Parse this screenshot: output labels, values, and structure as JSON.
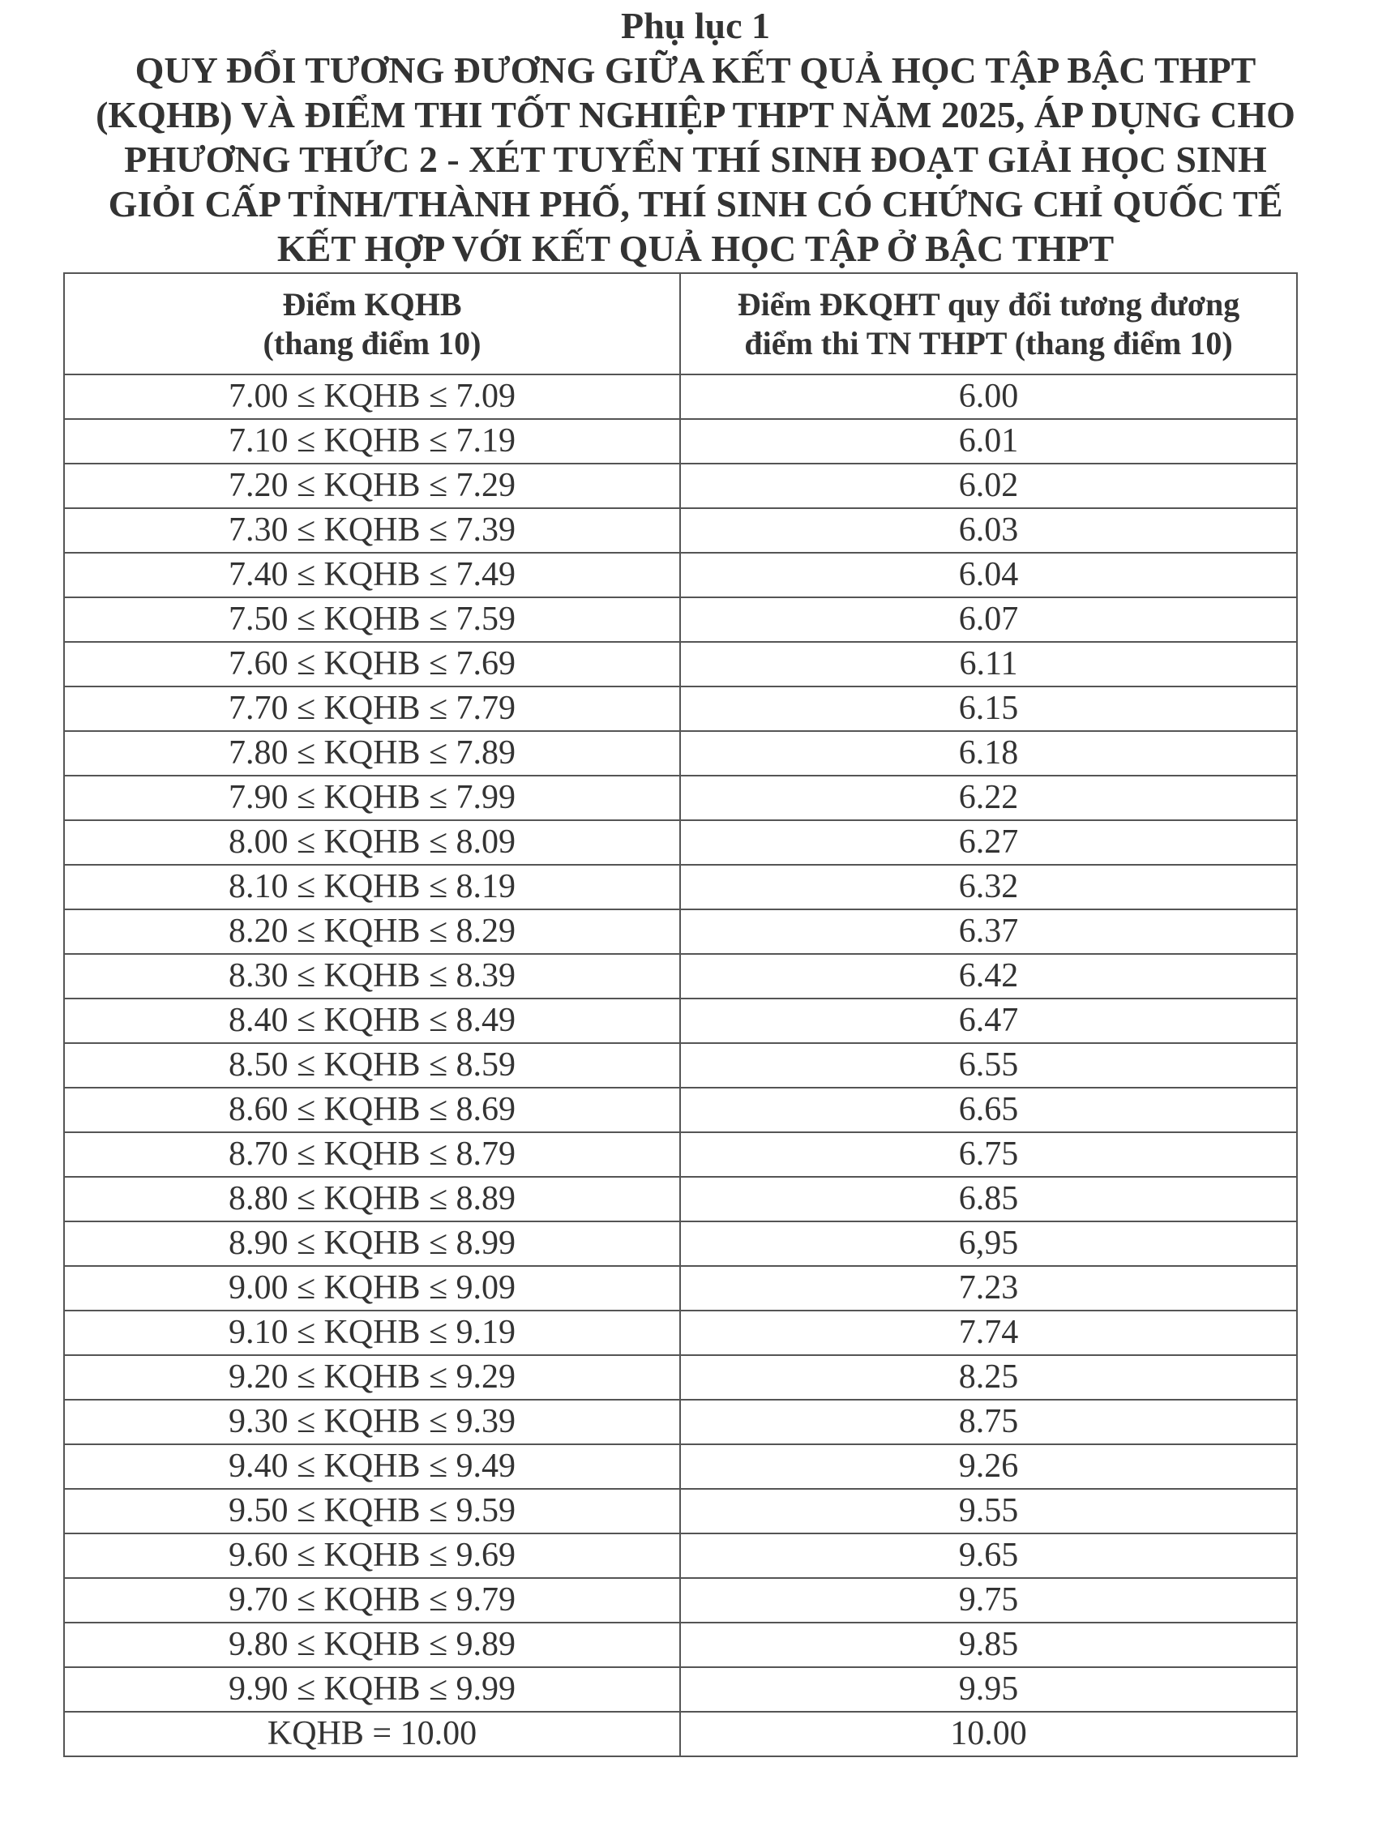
{
  "document": {
    "appendix": "Phụ lục 1",
    "title_lines": [
      "QUY ĐỔI TƯƠNG ĐƯƠNG GIỮA KẾT QUẢ HỌC TẬP BẬC THPT",
      "(KQHB) VÀ ĐIỂM THI TỐT NGHIỆP THPT NĂM 2025, ÁP DỤNG CHO",
      "PHƯƠNG THỨC 2 - XÉT TUYỂN THÍ SINH ĐOẠT GIẢI HỌC SINH",
      "GIỎI CẤP TỈNH/THÀNH PHỐ, THÍ SINH CÓ CHỨNG CHỈ QUỐC TẾ",
      "KẾT HỢP VỚI KẾT QUẢ HỌC TẬP Ở BẬC THPT"
    ]
  },
  "table": {
    "headers": [
      {
        "line1": "Điểm KQHB",
        "line2": "(thang điểm 10)"
      },
      {
        "line1": "Điểm ĐKQHT quy đổi tương đương",
        "line2": "điểm thi TN THPT  (thang điểm 10)"
      }
    ],
    "rows": [
      [
        "7.00 ≤ KQHB ≤ 7.09",
        "6.00"
      ],
      [
        "7.10 ≤ KQHB ≤ 7.19",
        "6.01"
      ],
      [
        "7.20 ≤ KQHB ≤ 7.29",
        "6.02"
      ],
      [
        "7.30 ≤ KQHB ≤ 7.39",
        "6.03"
      ],
      [
        "7.40 ≤ KQHB ≤ 7.49",
        "6.04"
      ],
      [
        "7.50 ≤ KQHB ≤ 7.59",
        "6.07"
      ],
      [
        "7.60 ≤ KQHB ≤ 7.69",
        "6.11"
      ],
      [
        "7.70 ≤ KQHB ≤ 7.79",
        "6.15"
      ],
      [
        "7.80 ≤ KQHB ≤ 7.89",
        "6.18"
      ],
      [
        "7.90 ≤ KQHB ≤ 7.99",
        "6.22"
      ],
      [
        "8.00 ≤ KQHB ≤ 8.09",
        "6.27"
      ],
      [
        "8.10 ≤ KQHB ≤ 8.19",
        "6.32"
      ],
      [
        "8.20 ≤ KQHB ≤ 8.29",
        "6.37"
      ],
      [
        "8.30 ≤ KQHB ≤ 8.39",
        "6.42"
      ],
      [
        "8.40 ≤ KQHB ≤ 8.49",
        "6.47"
      ],
      [
        "8.50 ≤ KQHB ≤ 8.59",
        "6.55"
      ],
      [
        "8.60 ≤ KQHB ≤ 8.69",
        "6.65"
      ],
      [
        "8.70 ≤ KQHB ≤ 8.79",
        "6.75"
      ],
      [
        "8.80 ≤ KQHB ≤ 8.89",
        "6.85"
      ],
      [
        "8.90 ≤ KQHB ≤ 8.99",
        "6,95"
      ],
      [
        "9.00 ≤ KQHB ≤ 9.09",
        "7.23"
      ],
      [
        "9.10 ≤ KQHB ≤ 9.19",
        "7.74"
      ],
      [
        "9.20 ≤ KQHB ≤ 9.29",
        "8.25"
      ],
      [
        "9.30 ≤ KQHB ≤ 9.39",
        "8.75"
      ],
      [
        "9.40 ≤ KQHB ≤ 9.49",
        "9.26"
      ],
      [
        "9.50 ≤ KQHB ≤ 9.59",
        "9.55"
      ],
      [
        "9.60 ≤ KQHB ≤ 9.69",
        "9.65"
      ],
      [
        "9.70 ≤ KQHB ≤ 9.79",
        "9.75"
      ],
      [
        "9.80 ≤ KQHB ≤ 9.89",
        "9.85"
      ],
      [
        "9.90 ≤ KQHB ≤ 9.99",
        "9.95"
      ],
      [
        "KQHB = 10.00",
        "10.00"
      ]
    ]
  }
}
